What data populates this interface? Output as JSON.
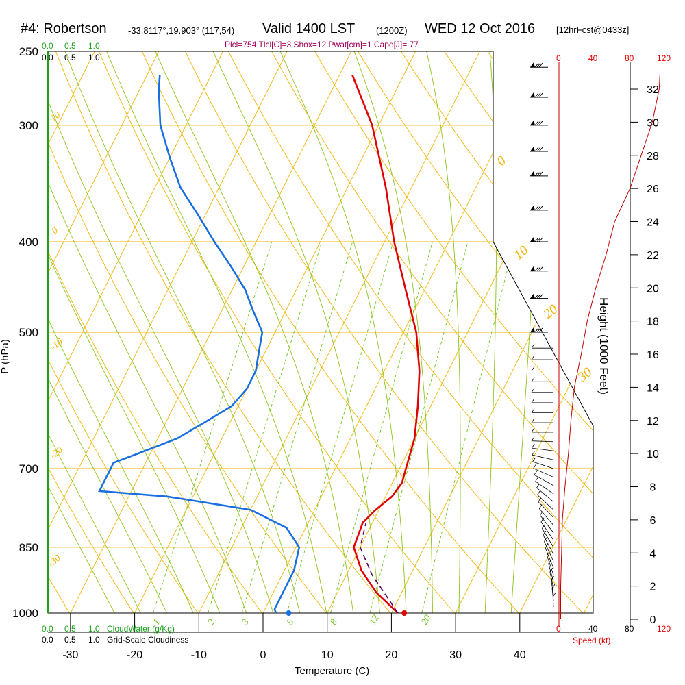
{
  "header": {
    "station": "#4: Robertson",
    "coords": "-33.8117°,19.903° (117,54)",
    "valid": "Valid 1400 LST",
    "valid_utc": "(1200Z)",
    "date": "WED 12 Oct 2016",
    "forecast": "[12hrFcst@0433z]",
    "indices": "Plcl=754 Tlcl[C]=3 Shox=12 Pwat[cm]=1 Cape[J]= 77"
  },
  "legend": {
    "cloudwater_ticks": [
      "0.0",
      "0.5",
      "1.0"
    ],
    "cloudwater_label": "CloudWater (g/Kg)",
    "cloudiness_ticks": [
      "0.0",
      "0.5",
      "1.0"
    ],
    "cloudiness_label": "Grid-Scale Cloudiness",
    "speed_label": "Speed (kt)",
    "speed_ticks": [
      "0",
      "40",
      "80",
      "120"
    ]
  },
  "colors": {
    "isotherm": "#f0b400",
    "dry_adiabat": "#f0b400",
    "moist_adiabat": "#8fc41a",
    "mixing_ratio": "#6cc41a",
    "temperature": "#e00000",
    "dewpoint": "#1a6fe0",
    "parcel": "#5a0060",
    "wind_speed": "#c00000",
    "cloud": "#1aa31a"
  },
  "chart_data": {
    "type": "line",
    "title": "",
    "xlabel": "Temperature (C)",
    "ylabel": "P (hPa)",
    "xlim": [
      -35,
      45
    ],
    "ylim_hpa": [
      1000,
      250
    ],
    "x_ticks": [
      -30,
      -20,
      -10,
      0,
      10,
      20,
      30,
      40
    ],
    "p_ticks": [
      1000,
      850,
      700,
      500,
      400,
      300,
      250
    ],
    "height_axis": {
      "label": "Height (1000 Feet)",
      "ticks": [
        0,
        2,
        4,
        6,
        8,
        10,
        12,
        14,
        16,
        18,
        20,
        22,
        24,
        26,
        28,
        30,
        32
      ]
    },
    "dry_adiabat_labels": [
      "-30",
      "-20",
      "-10",
      "0",
      "10",
      "20",
      "30",
      "0",
      "10",
      "20",
      "30"
    ],
    "mixing_ratio_labels": [
      "1",
      "2",
      "3",
      "5",
      "8",
      "12",
      "20"
    ],
    "series": [
      {
        "key": "temperature",
        "points": [
          [
            21.0,
            1000
          ],
          [
            16.0,
            950
          ],
          [
            12.0,
            900
          ],
          [
            9.0,
            850
          ],
          [
            8.5,
            800
          ],
          [
            9.5,
            775
          ],
          [
            11.0,
            750
          ],
          [
            11.5,
            725
          ],
          [
            11.0,
            700
          ],
          [
            10.0,
            650
          ],
          [
            8.0,
            600
          ],
          [
            5.5,
            550
          ],
          [
            2.0,
            500
          ],
          [
            -3.0,
            450
          ],
          [
            -8.5,
            400
          ],
          [
            -14.0,
            350
          ],
          [
            -21.0,
            300
          ],
          [
            -28.0,
            265
          ]
        ]
      },
      {
        "key": "dewpoint",
        "points": [
          [
            2.0,
            1000
          ],
          [
            1.5,
            990
          ],
          [
            1.5,
            950
          ],
          [
            1.5,
            900
          ],
          [
            0.5,
            850
          ],
          [
            -3.0,
            810
          ],
          [
            -10.0,
            775
          ],
          [
            -24.0,
            750
          ],
          [
            -35.0,
            740
          ],
          [
            -35.0,
            690
          ],
          [
            -32.0,
            675
          ],
          [
            -27.0,
            650
          ],
          [
            -24.0,
            625
          ],
          [
            -21.0,
            600
          ],
          [
            -20.0,
            575
          ],
          [
            -20.0,
            550
          ],
          [
            -21.0,
            525
          ],
          [
            -22.0,
            500
          ],
          [
            -25.0,
            475
          ],
          [
            -28.0,
            450
          ],
          [
            -32.0,
            425
          ],
          [
            -36.5,
            400
          ],
          [
            -41.0,
            375
          ],
          [
            -46.0,
            350
          ],
          [
            -50.0,
            325
          ],
          [
            -54.0,
            300
          ],
          [
            -57.0,
            275
          ],
          [
            -58.0,
            265
          ]
        ]
      },
      {
        "key": "parcel",
        "points": [
          [
            21.0,
            1000
          ],
          [
            18.0,
            960
          ],
          [
            14.0,
            910
          ],
          [
            10.0,
            850
          ],
          [
            9.0,
            800
          ]
        ]
      },
      {
        "key": "height_speed",
        "points": [
          [
            2,
            0
          ],
          [
            2,
            2
          ],
          [
            3,
            4
          ],
          [
            4,
            6
          ],
          [
            7,
            8
          ],
          [
            11,
            10
          ],
          [
            14,
            12
          ],
          [
            18,
            14
          ],
          [
            26,
            16
          ],
          [
            33,
            18
          ],
          [
            43,
            20
          ],
          [
            55,
            22
          ],
          [
            65,
            24
          ],
          [
            83,
            26
          ],
          [
            96,
            28
          ],
          [
            109,
            30
          ],
          [
            117,
            32
          ],
          [
            118,
            33
          ]
        ]
      }
    ],
    "surface": {
      "temperature": 22,
      "dewpoint": 4
    },
    "speed_axis": {
      "ticks": [
        0,
        40,
        80,
        120
      ],
      "unit": "kt"
    }
  }
}
